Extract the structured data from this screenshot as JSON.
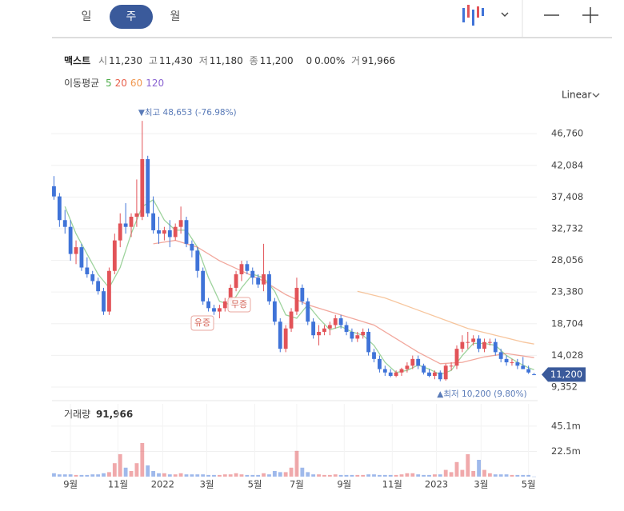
{
  "ui": {
    "tabs": [
      "일",
      "주",
      "월"
    ],
    "active_tab": 1,
    "stock_name": "맥스트",
    "quote": [
      {
        "label": "시",
        "value": "11,230"
      },
      {
        "label": "고",
        "value": "11,430"
      },
      {
        "label": "저",
        "value": "11,180"
      },
      {
        "label": "종",
        "value": "11,200"
      }
    ],
    "change": "0",
    "change_pct": "0.00%",
    "volume_label": "거",
    "volume_value": "91,966",
    "ma_title": "이동평균",
    "scale": "Linear"
  },
  "chart_data": {
    "type": "candlestick",
    "up_color": "#e25358",
    "down_color": "#3f73d8",
    "ylim": [
      7460,
      51150
    ],
    "yticks": [
      {
        "value": 9352,
        "label": "9,352"
      },
      {
        "value": 14028,
        "label": "14,028"
      },
      {
        "value": 18704,
        "label": "18,704"
      },
      {
        "value": 23380,
        "label": "23,380"
      },
      {
        "value": 28056,
        "label": "28,056"
      },
      {
        "value": 32732,
        "label": "32,732"
      },
      {
        "value": 37408,
        "label": "37,408"
      },
      {
        "value": 42084,
        "label": "42,084"
      },
      {
        "value": 46760,
        "label": "46,760"
      }
    ],
    "grid": true,
    "xlim": [
      -0.5,
      87.5
    ],
    "xticks": [
      {
        "value": 3,
        "label": "9월"
      },
      {
        "value": 11.6,
        "label": "11월"
      },
      {
        "value": 19.7,
        "label": "2022"
      },
      {
        "value": 27.7,
        "label": "3월"
      },
      {
        "value": 36.4,
        "label": "5월"
      },
      {
        "value": 44,
        "label": "7월"
      },
      {
        "value": 52.6,
        "label": "9월"
      },
      {
        "value": 61.3,
        "label": "11월"
      },
      {
        "value": 69.3,
        "label": "2023"
      },
      {
        "value": 77.4,
        "label": "3월"
      },
      {
        "value": 86,
        "label": "5월"
      }
    ],
    "ohlc": [
      [
        39000,
        40500,
        37000,
        37500
      ],
      [
        37500,
        38000,
        33000,
        34000
      ],
      [
        34000,
        35500,
        32000,
        33000
      ],
      [
        33000,
        34000,
        28000,
        29000
      ],
      [
        29000,
        31000,
        27500,
        30000
      ],
      [
        30000,
        30500,
        26500,
        27000
      ],
      [
        27000,
        28500,
        25500,
        26000
      ],
      [
        26000,
        26500,
        24500,
        25000
      ],
      [
        25000,
        25500,
        23000,
        23500
      ],
      [
        23500,
        24000,
        20000,
        20500
      ],
      [
        20500,
        27000,
        20000,
        26500
      ],
      [
        26500,
        32000,
        26000,
        31000
      ],
      [
        31000,
        35000,
        30000,
        33500
      ],
      [
        33500,
        36500,
        32000,
        33000
      ],
      [
        33000,
        35000,
        31500,
        34500
      ],
      [
        34500,
        40000,
        33000,
        35000
      ],
      [
        34500,
        48653,
        34000,
        43000
      ],
      [
        43000,
        43500,
        34500,
        35000
      ],
      [
        35000,
        37500,
        32000,
        32500
      ],
      [
        32500,
        34500,
        30500,
        32000
      ],
      [
        32000,
        33000,
        31000,
        32500
      ],
      [
        32500,
        34000,
        30000,
        31500
      ],
      [
        31500,
        33500,
        31000,
        33000
      ],
      [
        33000,
        36000,
        32000,
        34000
      ],
      [
        34000,
        34500,
        30000,
        30500
      ],
      [
        30500,
        31000,
        28500,
        29500
      ],
      [
        29500,
        30000,
        25500,
        26500
      ],
      [
        26500,
        27000,
        21500,
        22000
      ],
      [
        22000,
        22500,
        20500,
        21000
      ],
      [
        21000,
        21500,
        20000,
        20500
      ],
      [
        20500,
        21500,
        19500,
        21000
      ],
      [
        21000,
        22500,
        20500,
        22000
      ],
      [
        22000,
        24500,
        21500,
        24000
      ],
      [
        24000,
        26500,
        23500,
        26000
      ],
      [
        26000,
        28000,
        25000,
        27500
      ],
      [
        27500,
        28000,
        26000,
        26500
      ],
      [
        26500,
        27000,
        24500,
        25500
      ],
      [
        25500,
        26000,
        24000,
        24500
      ],
      [
        24500,
        30500,
        23500,
        26000
      ],
      [
        26000,
        26500,
        21500,
        22000
      ],
      [
        22000,
        22500,
        18500,
        19000
      ],
      [
        19000,
        19500,
        14500,
        15000
      ],
      [
        15000,
        18500,
        14500,
        18000
      ],
      [
        18000,
        21000,
        17500,
        20500
      ],
      [
        20500,
        25500,
        20000,
        24000
      ],
      [
        24000,
        24500,
        21500,
        22000
      ],
      [
        22000,
        22500,
        18500,
        19000
      ],
      [
        19000,
        19500,
        16500,
        17000
      ],
      [
        17000,
        18500,
        15500,
        17500
      ],
      [
        17500,
        18500,
        17000,
        18000
      ],
      [
        18000,
        19000,
        17000,
        18500
      ],
      [
        18500,
        20000,
        18000,
        19500
      ],
      [
        19500,
        20000,
        18000,
        18500
      ],
      [
        18500,
        19000,
        17000,
        17500
      ],
      [
        17500,
        18000,
        16000,
        16500
      ],
      [
        16500,
        17500,
        16000,
        17000
      ],
      [
        17000,
        18000,
        16500,
        17500
      ],
      [
        17500,
        18000,
        14000,
        14500
      ],
      [
        14500,
        15000,
        13000,
        13500
      ],
      [
        13500,
        14000,
        11500,
        12000
      ],
      [
        12000,
        12500,
        11000,
        11500
      ],
      [
        11500,
        12000,
        10800,
        11000
      ],
      [
        11000,
        11800,
        10800,
        11500
      ],
      [
        11500,
        12200,
        11000,
        12000
      ],
      [
        12000,
        13000,
        11500,
        12500
      ],
      [
        12500,
        14000,
        12000,
        13500
      ],
      [
        13500,
        14000,
        12000,
        12500
      ],
      [
        12500,
        12800,
        11200,
        11500
      ],
      [
        11500,
        12000,
        10800,
        11000
      ],
      [
        11000,
        11800,
        10500,
        11500
      ],
      [
        11500,
        11800,
        10200,
        10500
      ],
      [
        10500,
        12800,
        10300,
        12500
      ],
      [
        12500,
        13000,
        11800,
        12500
      ],
      [
        12500,
        15500,
        12000,
        15000
      ],
      [
        15000,
        17000,
        14500,
        16000
      ],
      [
        16000,
        17500,
        15000,
        16000
      ],
      [
        16000,
        17000,
        15500,
        16500
      ],
      [
        16500,
        17000,
        14500,
        15000
      ],
      [
        15000,
        16500,
        14500,
        16000
      ],
      [
        16000,
        16500,
        15500,
        16000
      ],
      [
        16000,
        16500,
        14000,
        14500
      ],
      [
        14500,
        15000,
        13000,
        13500
      ],
      [
        13500,
        14000,
        12500,
        13000
      ],
      [
        13000,
        13500,
        12500,
        13000
      ],
      [
        13000,
        13500,
        12000,
        12500
      ],
      [
        12500,
        13800,
        12000,
        12000
      ],
      [
        12000,
        12500,
        11300,
        11500
      ],
      [
        11230,
        11430,
        11180,
        11200
      ]
    ],
    "moving_averages": [
      {
        "name": "5",
        "color": "#4fae4c",
        "x": [
          2,
          4,
          6,
          8,
          10,
          12,
          14,
          16,
          18,
          20,
          22,
          24,
          26,
          28,
          30,
          32,
          34,
          36,
          38,
          40,
          42,
          44,
          46,
          48,
          50,
          52,
          54,
          56,
          58,
          60,
          62,
          64,
          66,
          68,
          70,
          72,
          74,
          76,
          78,
          80,
          82,
          84,
          86,
          87
        ],
        "values": [
          36000,
          32000,
          29000,
          26000,
          24000,
          27000,
          32000,
          36000,
          37000,
          34000,
          32500,
          32500,
          30000,
          25500,
          22000,
          21500,
          24000,
          26000,
          25500,
          23500,
          20000,
          19500,
          21500,
          19500,
          17800,
          18300,
          17500,
          17000,
          15500,
          13000,
          11500,
          11800,
          12600,
          12000,
          11200,
          11800,
          14000,
          15800,
          15800,
          15500,
          14000,
          13000,
          12200,
          11900
        ]
      },
      {
        "name": "20",
        "color": "#e8604c",
        "x": [
          18,
          22,
          26,
          30,
          34,
          38,
          42,
          46,
          50,
          54,
          58,
          62,
          66,
          70,
          74,
          78,
          82,
          87
        ],
        "values": [
          30500,
          31000,
          30000,
          28000,
          26500,
          25000,
          23000,
          21500,
          20500,
          19500,
          18500,
          16500,
          14500,
          12800,
          13000,
          13800,
          14300,
          13700
        ]
      },
      {
        "name": "60",
        "color": "#f0974f",
        "x": [
          55,
          60,
          65,
          70,
          75,
          80,
          85,
          87
        ],
        "values": [
          23500,
          22500,
          21000,
          19500,
          18000,
          17000,
          16000,
          15700
        ]
      },
      {
        "name": "120",
        "color": "#8a63d2",
        "x": [],
        "values": []
      }
    ],
    "max_label": "▼최고 48,653 (-76.98%)",
    "min_label": "▲최저 10,200 (9.80%)",
    "events": [
      "유증",
      "무증"
    ],
    "last_price_label": "11,200",
    "volume": {
      "title": "거래량",
      "latest": "91,966",
      "ylim": [
        0,
        65
      ],
      "yticks": [
        {
          "value": 22.5,
          "label": "22.5m"
        },
        {
          "value": 45.1,
          "label": "45.1m"
        }
      ],
      "values": [
        3,
        2,
        2,
        2,
        1.5,
        1.5,
        1.5,
        2,
        2,
        3,
        4,
        12,
        20,
        8,
        5,
        12,
        30,
        10,
        5,
        3,
        3,
        2,
        2,
        3,
        2,
        2,
        2,
        2,
        1.5,
        1.5,
        1.5,
        2,
        2,
        3,
        2,
        1.5,
        1.5,
        1.5,
        3,
        2,
        5,
        4,
        4,
        8,
        23,
        8,
        4,
        2,
        2,
        1.5,
        1.5,
        2,
        1.5,
        1.5,
        1.5,
        1.5,
        1.5,
        2,
        2,
        1.5,
        1.5,
        1.5,
        1.5,
        2,
        3,
        3,
        2,
        1.5,
        1.5,
        2,
        2,
        6,
        4,
        13,
        6,
        20,
        5,
        15,
        6,
        3,
        2,
        2,
        2,
        1.5,
        1.5,
        1.5,
        1.5,
        0.091966
      ]
    }
  }
}
